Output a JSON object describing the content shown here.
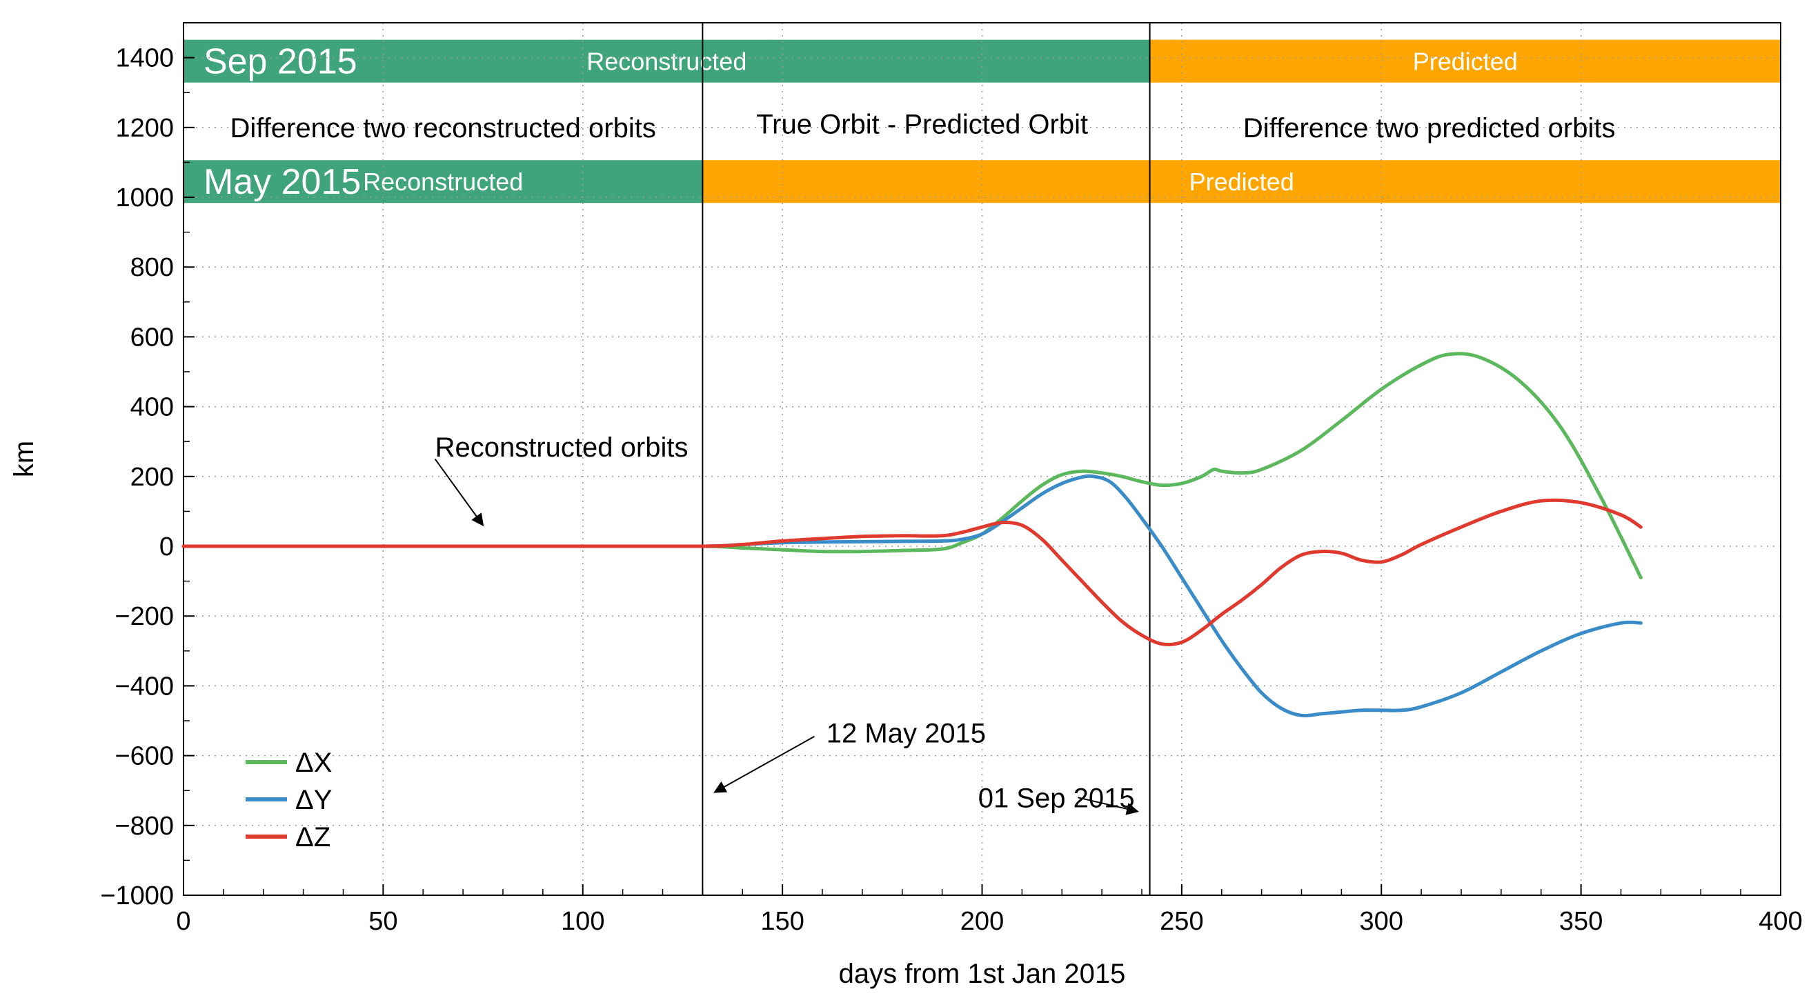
{
  "chart_data": {
    "type": "line",
    "xlabel": "days from 1st Jan 2015",
    "ylabel": "km",
    "xlim": [
      0,
      400
    ],
    "ylim": [
      -1000,
      1500
    ],
    "x_ticks": [
      0,
      50,
      100,
      150,
      200,
      250,
      300,
      350,
      400
    ],
    "y_ticks": [
      -1000,
      -800,
      -600,
      -400,
      -200,
      0,
      200,
      400,
      600,
      800,
      1000,
      1200,
      1400
    ],
    "x_tick_labels": [
      "0",
      "50",
      "100",
      "150",
      "200",
      "250",
      "300",
      "350",
      "400"
    ],
    "y_tick_labels": [
      "−1000",
      "−800",
      "−600",
      "−400",
      "−200",
      "0",
      "200",
      "400",
      "600",
      "800",
      "1000",
      "1200",
      "1400"
    ],
    "grid": true,
    "legend_position": "bottom-left",
    "series": [
      {
        "name": "ΔX",
        "color": "#5cb85c",
        "x": [
          0,
          50,
          100,
          130,
          140,
          150,
          160,
          170,
          180,
          190,
          195,
          200,
          205,
          210,
          215,
          220,
          225,
          230,
          235,
          240,
          245,
          250,
          255,
          258,
          260,
          265,
          270,
          280,
          290,
          300,
          310,
          317,
          325,
          335,
          345,
          355,
          365
        ],
        "y": [
          0,
          0,
          0,
          0,
          -5,
          -10,
          -15,
          -15,
          -12,
          -8,
          10,
          35,
          80,
          130,
          175,
          205,
          215,
          210,
          200,
          185,
          175,
          180,
          200,
          220,
          215,
          210,
          220,
          275,
          360,
          450,
          520,
          550,
          540,
          470,
          340,
          140,
          -90
        ]
      },
      {
        "name": "ΔY",
        "color": "#3a8cc8",
        "x": [
          0,
          50,
          100,
          130,
          140,
          150,
          160,
          170,
          180,
          190,
          195,
          200,
          205,
          210,
          215,
          220,
          225,
          228,
          232,
          236,
          240,
          245,
          250,
          255,
          260,
          265,
          270,
          275,
          280,
          285,
          290,
          295,
          300,
          305,
          310,
          320,
          330,
          340,
          350,
          360,
          365
        ],
        "y": [
          0,
          0,
          0,
          0,
          5,
          10,
          12,
          13,
          14,
          15,
          20,
          35,
          70,
          110,
          150,
          180,
          198,
          200,
          185,
          140,
          80,
          0,
          -90,
          -180,
          -270,
          -350,
          -420,
          -465,
          -485,
          -480,
          -475,
          -470,
          -470,
          -470,
          -460,
          -420,
          -360,
          -300,
          -250,
          -220,
          -220
        ]
      },
      {
        "name": "ΔZ",
        "color": "#e03a2e",
        "x": [
          0,
          50,
          100,
          130,
          140,
          150,
          160,
          170,
          180,
          190,
          195,
          200,
          205,
          210,
          215,
          220,
          225,
          230,
          235,
          240,
          245,
          250,
          255,
          260,
          265,
          270,
          275,
          280,
          285,
          290,
          295,
          300,
          305,
          310,
          320,
          330,
          340,
          350,
          360,
          365
        ],
        "y": [
          0,
          0,
          0,
          0,
          5,
          15,
          22,
          28,
          30,
          30,
          40,
          55,
          68,
          60,
          20,
          -40,
          -100,
          -160,
          -215,
          -255,
          -280,
          -275,
          -240,
          -195,
          -155,
          -110,
          -60,
          -25,
          -15,
          -20,
          -40,
          -45,
          -25,
          5,
          55,
          100,
          130,
          125,
          90,
          55
        ]
      }
    ],
    "bands": [
      {
        "label": "Reconstructed",
        "from": 0,
        "to": 242,
        "y_center": 1390,
        "color": "#3fa37b"
      },
      {
        "label": "Predicted",
        "from": 242,
        "to": 400,
        "y_center": 1390,
        "color": "#ffa500"
      },
      {
        "label": "Reconstructed",
        "from": 0,
        "to": 130,
        "y_center": 1045,
        "color": "#3fa37b"
      },
      {
        "label": "Predicted",
        "from": 130,
        "to": 400,
        "y_center": 1045,
        "color": "#ffa500"
      }
    ],
    "band_titles": [
      {
        "label": "Sep 2015",
        "x": 5,
        "y": 1390
      },
      {
        "label": "May 2015",
        "x": 5,
        "y": 1045
      }
    ],
    "vertical_lines": [
      {
        "x": 130,
        "label": "12 May 2015"
      },
      {
        "x": 242,
        "label": "01 Sep 2015"
      }
    ],
    "region_labels": [
      {
        "label": "Difference two reconstructed orbits",
        "x": 65,
        "y": 1200
      },
      {
        "label": "True Orbit - Predicted Orbit",
        "x": 185,
        "y": 1210
      },
      {
        "label": "Difference two predicted orbits",
        "x": 312,
        "y": 1200
      }
    ],
    "annotations": [
      {
        "label": "Reconstructed orbits",
        "text_x": 63,
        "text_y": 285,
        "arrow_from": [
          63,
          250
        ],
        "arrow_to": [
          75,
          60
        ]
      },
      {
        "label": "12 May 2015",
        "text_x": 161,
        "text_y": -535,
        "arrow_from": [
          158,
          -545
        ],
        "arrow_to": [
          133,
          -705
        ]
      },
      {
        "label": "01 Sep 2015",
        "text_x": 199,
        "text_y": -720,
        "arrow_from": [
          224,
          -720
        ],
        "arrow_to": [
          239,
          -760
        ]
      }
    ]
  }
}
